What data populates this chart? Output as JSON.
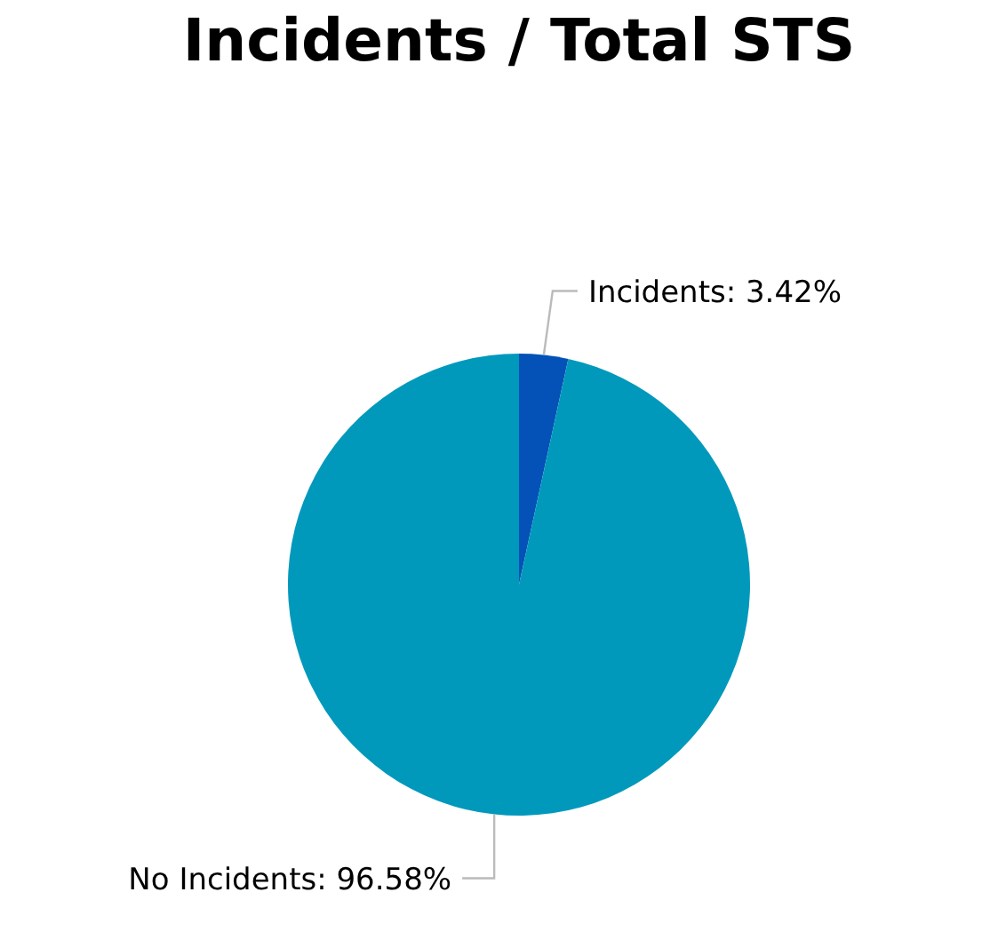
{
  "chart_data": {
    "type": "pie",
    "title": "Incidents / Total STS",
    "categories": [
      "Incidents",
      "No Incidents"
    ],
    "values": [
      3.42,
      96.58
    ],
    "value_labels": [
      "3.42%",
      "96.58%"
    ],
    "colors": [
      "#0452b8",
      "#0099bb"
    ],
    "legend": false
  }
}
